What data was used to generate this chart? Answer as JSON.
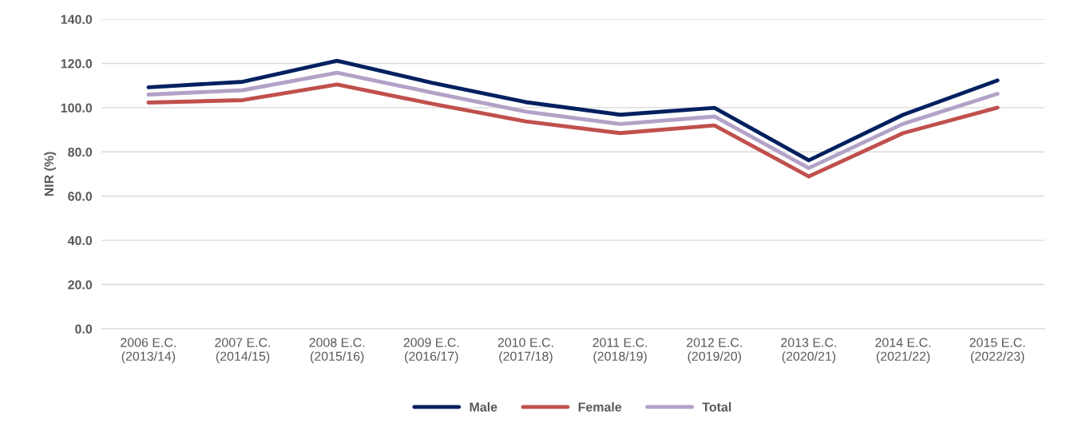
{
  "chart_data": {
    "type": "line",
    "ylabel": "NIR (%)",
    "categories": [
      "2006 E.C.\n(2013/14)",
      "2007 E.C.\n(2014/15)",
      "2008 E.C.\n(2015/16)",
      "2009 E.C.\n(2016/17)",
      "2010 E.C.\n(2017/18)",
      "2011 E.C.\n(2018/19)",
      "2012 E.C.\n(2019/20)",
      "2013 E.C.\n(2020/21)",
      "2014 E.C.\n(2021/22)",
      "2015 E.C.\n(2022/23)"
    ],
    "series": [
      {
        "name": "Male",
        "color": "#002060",
        "values": [
          109.2,
          111.7,
          121.2,
          111.3,
          102.5,
          96.8,
          99.9,
          76.2,
          96.8,
          112.3
        ]
      },
      {
        "name": "Female",
        "color": "#c0504d",
        "values": [
          102.3,
          103.4,
          110.5,
          101.8,
          93.8,
          88.5,
          92.0,
          68.9,
          88.5,
          100.0
        ]
      },
      {
        "name": "Total",
        "color": "#b3a2c7",
        "values": [
          105.9,
          107.9,
          115.8,
          106.9,
          98.2,
          92.6,
          96.0,
          72.7,
          92.7,
          106.3
        ]
      }
    ],
    "ylim": [
      0,
      140
    ],
    "yticks": [
      {
        "value": 0,
        "label": "0.0"
      },
      {
        "value": 20,
        "label": "20.0"
      },
      {
        "value": 40,
        "label": "40.0"
      },
      {
        "value": 60,
        "label": "60.0"
      },
      {
        "value": 80,
        "label": "80.0"
      },
      {
        "value": 100,
        "label": "100.0"
      },
      {
        "value": 120,
        "label": "120.0"
      },
      {
        "value": 140,
        "label": "140.0"
      }
    ],
    "grid": "y",
    "legend": "bottom",
    "marker": "none",
    "line_style": "solid"
  }
}
